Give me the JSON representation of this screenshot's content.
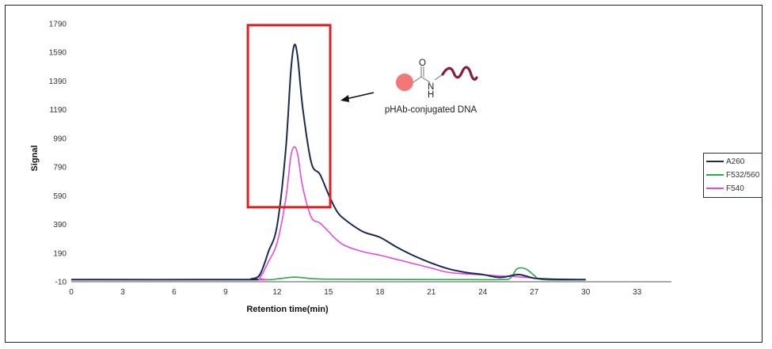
{
  "chart_data": {
    "type": "line",
    "title": "",
    "xlabel": "Retention time(min)",
    "ylabel": "Signal",
    "xlim": [
      0,
      35
    ],
    "ylim": [
      -10,
      1790
    ],
    "x_ticks": [
      0,
      3,
      6,
      9,
      12,
      15,
      18,
      21,
      24,
      27,
      30,
      33
    ],
    "y_ticks": [
      -10,
      190,
      390,
      590,
      790,
      990,
      1190,
      1390,
      1590,
      1790
    ],
    "grid": false,
    "legend_position": "right",
    "series": [
      {
        "name": "A260",
        "color": "#1b2a52",
        "points": [
          [
            0,
            5
          ],
          [
            10,
            5
          ],
          [
            10.5,
            10
          ],
          [
            11,
            40
          ],
          [
            11.5,
            200
          ],
          [
            12,
            380
          ],
          [
            12.5,
            900
          ],
          [
            12.8,
            1450
          ],
          [
            13,
            1640
          ],
          [
            13.2,
            1560
          ],
          [
            13.5,
            1200
          ],
          [
            14,
            820
          ],
          [
            14.5,
            740
          ],
          [
            15,
            600
          ],
          [
            15.5,
            480
          ],
          [
            16,
            420
          ],
          [
            17,
            340
          ],
          [
            18,
            300
          ],
          [
            19,
            230
          ],
          [
            20,
            170
          ],
          [
            21,
            120
          ],
          [
            22,
            80
          ],
          [
            23,
            55
          ],
          [
            24,
            40
          ],
          [
            25,
            20
          ],
          [
            26,
            40
          ],
          [
            26.5,
            30
          ],
          [
            27,
            15
          ],
          [
            28,
            8
          ],
          [
            30,
            5
          ]
        ]
      },
      {
        "name": "F532/560",
        "color": "#2aa84a",
        "points": [
          [
            0,
            3
          ],
          [
            10.5,
            3
          ],
          [
            12,
            10
          ],
          [
            13,
            22
          ],
          [
            14,
            12
          ],
          [
            15,
            8
          ],
          [
            18,
            6
          ],
          [
            22,
            5
          ],
          [
            25,
            5
          ],
          [
            25.6,
            15
          ],
          [
            26,
            80
          ],
          [
            26.5,
            80
          ],
          [
            27,
            35
          ],
          [
            27.5,
            5
          ],
          [
            30,
            3
          ]
        ]
      },
      {
        "name": "F540",
        "color": "#e34ae3",
        "points": [
          [
            0,
            4
          ],
          [
            10.5,
            4
          ],
          [
            11,
            20
          ],
          [
            11.5,
            130
          ],
          [
            12,
            260
          ],
          [
            12.5,
            560
          ],
          [
            12.8,
            860
          ],
          [
            13,
            930
          ],
          [
            13.2,
            880
          ],
          [
            13.5,
            650
          ],
          [
            14,
            440
          ],
          [
            14.5,
            400
          ],
          [
            15,
            340
          ],
          [
            15.5,
            280
          ],
          [
            16,
            240
          ],
          [
            17,
            200
          ],
          [
            18,
            175
          ],
          [
            19,
            145
          ],
          [
            20,
            115
          ],
          [
            21,
            85
          ],
          [
            22,
            55
          ],
          [
            23,
            45
          ],
          [
            24,
            38
          ],
          [
            25,
            30
          ],
          [
            26,
            25
          ],
          [
            27,
            15
          ],
          [
            28,
            8
          ],
          [
            30,
            4
          ]
        ]
      }
    ],
    "annotation": {
      "label": "pHAb-conjugated DNA",
      "box_color": "#e02020",
      "box_x_range": [
        10.3,
        15.1
      ],
      "box_y_range": [
        510,
        1780
      ],
      "chem_label_O": "O",
      "chem_label_N": "N",
      "chem_label_H": "H",
      "dye_color": "#f27777",
      "dna_color": "#8a1c3b"
    }
  }
}
